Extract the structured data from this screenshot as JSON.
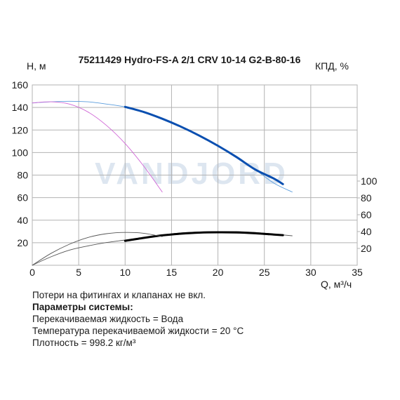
{
  "chart_data": {
    "type": "line",
    "title": "75211429 Hydro-FS-A 2/1 CRV 10-14 G2-B-80-16",
    "watermark": "VANDJORD",
    "xlabel": "Q, м³/ч",
    "ylabel_left": "Н, м",
    "ylabel_right": "КПД, %",
    "xlim": [
      0,
      35
    ],
    "ylim_left": [
      0,
      160
    ],
    "ylim_right": [
      0,
      120
    ],
    "x_ticks": [
      "0",
      "5",
      "10",
      "15",
      "20",
      "25",
      "30",
      "35"
    ],
    "y_left_ticks": [
      "20",
      "40",
      "60",
      "80",
      "100",
      "120",
      "140",
      "160"
    ],
    "y_right_ticks": [
      "20",
      "40",
      "60",
      "80",
      "100"
    ],
    "grid": true,
    "colors": {
      "head_operating": "#0a4fb0",
      "head_full": "#5b9ddd",
      "head_single": "#d066d6",
      "efficiency_operating": "#000000",
      "efficiency_full": "#555555",
      "grid": "#b3b3b3",
      "watermark": "#dde6f0"
    },
    "series": [
      {
        "axis": "left",
        "style": "thin",
        "color_key": "head_full",
        "x": [
          0,
          2,
          4,
          6,
          8,
          10,
          12,
          14,
          16,
          18,
          20,
          22,
          24,
          26,
          28
        ],
        "y": [
          144,
          145,
          145.5,
          145,
          143,
          140.5,
          136,
          130,
          123,
          115,
          106,
          96,
          85,
          73,
          65
        ]
      },
      {
        "axis": "left",
        "style": "bold",
        "color_key": "head_operating",
        "x": [
          10,
          12,
          14,
          16,
          18,
          20,
          22,
          24,
          26,
          27
        ],
        "y": [
          140.5,
          136,
          130,
          123,
          115,
          106,
          96,
          85,
          77,
          72
        ]
      },
      {
        "axis": "left",
        "style": "thin",
        "color_key": "head_single",
        "x": [
          0,
          2,
          4,
          6,
          8,
          10,
          12,
          14
        ],
        "y": [
          144,
          145,
          143,
          136,
          124,
          108,
          88,
          65
        ]
      },
      {
        "axis": "right",
        "style": "thin",
        "color_key": "efficiency_full",
        "x": [
          0,
          2,
          4,
          6,
          8,
          10,
          12,
          14,
          16,
          18,
          20,
          22,
          24,
          26,
          28
        ],
        "y": [
          0,
          10,
          18,
          23,
          27,
          30,
          33,
          36,
          38.5,
          39.5,
          40,
          40,
          39,
          37,
          35
        ]
      },
      {
        "axis": "right",
        "style": "bold",
        "color_key": "efficiency_operating",
        "x": [
          10,
          12,
          14,
          16,
          18,
          20,
          22,
          24,
          26,
          27
        ],
        "y": [
          29,
          32.5,
          35.5,
          37.5,
          38.8,
          39.2,
          39,
          38,
          36.5,
          35.7
        ]
      },
      {
        "axis": "right",
        "style": "thin",
        "color_key": "efficiency_full",
        "x": [
          0,
          2,
          4,
          6,
          8,
          10,
          12,
          14
        ],
        "y": [
          0,
          14,
          25,
          33,
          37.5,
          39,
          38,
          34
        ]
      }
    ]
  },
  "notes": {
    "line1": "Потери на фитингах и клапанах не вкл.",
    "line2": "Параметры системы:",
    "line3": "Перекачиваемая жидкость = Вода",
    "line4": "Температура перекачиваемой жидкости = 20 °C",
    "line5": "Плотность = 998.2 кг/м³"
  }
}
